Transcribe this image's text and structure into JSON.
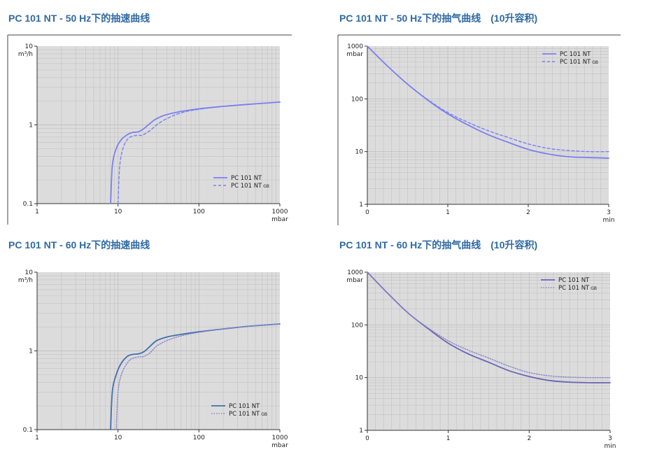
{
  "colors": {
    "title": "#2f6aa3",
    "plot_bg": "#dcdcdc",
    "grid": "#c2c2c2",
    "axis": "#333333",
    "line_light": "#7b7ff2",
    "line_dark": "#3f6faf",
    "line_violet": "#6c64b8",
    "line_gray_violet": "#8d86c9"
  },
  "chart_data": [
    {
      "id": "p50",
      "title": "PC 101 NT - 50 Hz下的抽速曲线",
      "type": "line",
      "xscale": "log",
      "yscale": "log",
      "xlim": [
        1,
        1000
      ],
      "ylim": [
        0.1,
        10
      ],
      "xticks": [
        "1",
        "10",
        "100",
        "1000"
      ],
      "yticks": [
        "0.1",
        "1",
        "10"
      ],
      "xunit": "mbar",
      "yunit": "m³/h",
      "grid": true,
      "legend_position": "bottom-right",
      "series": [
        {
          "name": "PC 101 NT",
          "sub": "",
          "style": "solid",
          "color": "#7b7ff2",
          "x": [
            8.1,
            8.5,
            9.5,
            11,
            13,
            15,
            18,
            21,
            25,
            30,
            40,
            60,
            100,
            200,
            400,
            1000
          ],
          "y": [
            0.1,
            0.3,
            0.5,
            0.65,
            0.75,
            0.8,
            0.82,
            0.9,
            1.05,
            1.2,
            1.35,
            1.48,
            1.6,
            1.72,
            1.82,
            1.95
          ]
        },
        {
          "name": "PC 101 NT",
          "sub": "GB",
          "style": "dashed",
          "color": "#7b7ff2",
          "x": [
            10,
            10.5,
            11.5,
            13,
            15,
            18,
            20,
            25,
            30,
            40,
            60,
            100,
            200,
            400,
            1000
          ],
          "y": [
            0.1,
            0.3,
            0.5,
            0.65,
            0.72,
            0.74,
            0.74,
            0.85,
            1.0,
            1.2,
            1.42,
            1.58,
            1.72,
            1.82,
            1.95
          ]
        }
      ]
    },
    {
      "id": "e50",
      "title": "PC 101 NT - 50 Hz下的抽气曲线　(10升容积)",
      "type": "line",
      "xscale": "linear",
      "yscale": "log",
      "xlim": [
        0,
        3
      ],
      "ylim": [
        1,
        1000
      ],
      "xticks": [
        "0",
        "1",
        "2",
        "3"
      ],
      "yticks": [
        "1",
        "10",
        "100",
        "1000"
      ],
      "xunit": "min",
      "yunit": "mbar",
      "grid": true,
      "legend_position": "top-right",
      "series": [
        {
          "name": "PC 101 NT",
          "sub": "",
          "style": "solid",
          "color": "#7b7ff2",
          "x": [
            0,
            0.25,
            0.5,
            0.75,
            1.0,
            1.25,
            1.5,
            1.75,
            2.0,
            2.25,
            2.5,
            2.75,
            3.0
          ],
          "y": [
            1000,
            420,
            190,
            95,
            52,
            32,
            21,
            15,
            11,
            9,
            8,
            7.7,
            7.5
          ]
        },
        {
          "name": "PC 101 NT",
          "sub": "GB",
          "style": "dashed",
          "color": "#7b7ff2",
          "x": [
            0,
            0.25,
            0.5,
            0.75,
            1.0,
            1.25,
            1.5,
            1.75,
            2.0,
            2.25,
            2.5,
            2.75,
            3.0
          ],
          "y": [
            1000,
            420,
            190,
            97,
            55,
            36,
            25,
            18.5,
            14,
            11.5,
            10.5,
            10,
            10
          ]
        }
      ]
    },
    {
      "id": "p60",
      "title": "PC 101 NT - 60 Hz下的抽速曲线",
      "type": "line",
      "xscale": "log",
      "yscale": "log",
      "xlim": [
        1,
        1000
      ],
      "ylim": [
        0.1,
        10
      ],
      "xticks": [
        "1",
        "10",
        "100",
        "1000"
      ],
      "yticks": [
        "0.1",
        "1",
        "10"
      ],
      "xunit": "mbar",
      "yunit": "m³/h",
      "grid": true,
      "legend_position": "bottom-right",
      "series": [
        {
          "name": "PC 101 NT",
          "sub": "",
          "style": "solid",
          "color": "#3f6faf",
          "x": [
            8.1,
            8.5,
            9.5,
            11,
            13,
            15,
            18,
            21,
            25,
            30,
            40,
            60,
            100,
            200,
            400,
            1000
          ],
          "y": [
            0.1,
            0.3,
            0.5,
            0.7,
            0.85,
            0.9,
            0.92,
            0.98,
            1.15,
            1.35,
            1.5,
            1.62,
            1.75,
            1.9,
            2.05,
            2.2
          ]
        },
        {
          "name": "PC 101 NT",
          "sub": "GB",
          "style": "dotted",
          "color": "#8d86c9",
          "x": [
            9.5,
            10,
            11,
            13,
            15,
            18,
            21,
            25,
            30,
            40,
            60,
            100,
            200,
            400,
            1000
          ],
          "y": [
            0.1,
            0.3,
            0.5,
            0.7,
            0.8,
            0.84,
            0.85,
            0.95,
            1.15,
            1.35,
            1.55,
            1.72,
            1.9,
            2.05,
            2.2
          ]
        }
      ]
    },
    {
      "id": "e60",
      "title": "PC 101 NT - 60 Hz下的抽气曲线　(10升容积)",
      "type": "line",
      "xscale": "linear",
      "yscale": "log",
      "xlim": [
        0,
        3
      ],
      "ylim": [
        1,
        1000
      ],
      "xticks": [
        "0",
        "1",
        "2",
        "3"
      ],
      "yticks": [
        "1",
        "10",
        "100",
        "1000"
      ],
      "xunit": "min",
      "yunit": "mbar",
      "grid": true,
      "legend_position": "top-right",
      "series": [
        {
          "name": "PC 101 NT",
          "sub": "",
          "style": "solid",
          "color": "#6c64b8",
          "x": [
            0,
            0.25,
            0.5,
            0.75,
            1.0,
            1.25,
            1.5,
            1.75,
            2.0,
            2.25,
            2.5,
            2.75,
            3.0
          ],
          "y": [
            1000,
            400,
            170,
            85,
            45,
            28,
            19.5,
            13.5,
            10.5,
            8.8,
            8.2,
            8,
            8
          ]
        },
        {
          "name": "PC 101 NT",
          "sub": "GB",
          "style": "dotted",
          "color": "#8d86c9",
          "x": [
            0,
            0.25,
            0.5,
            0.75,
            1.0,
            1.25,
            1.5,
            1.75,
            2.0,
            2.25,
            2.5,
            2.75,
            3.0
          ],
          "y": [
            1000,
            400,
            170,
            88,
            50,
            33,
            23.5,
            16.5,
            12.5,
            10.8,
            10.2,
            10,
            10
          ]
        }
      ]
    }
  ]
}
